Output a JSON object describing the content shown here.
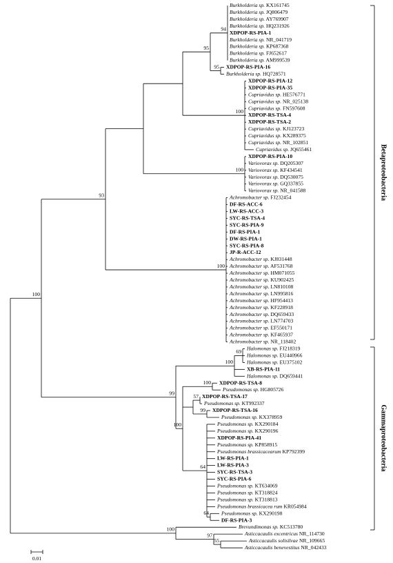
{
  "leaves": [
    {
      "genus": "Burkholderia sp.",
      "accession": "KX161745"
    },
    {
      "genus": "Burkholderia sp.",
      "accession": "JQ806479"
    },
    {
      "genus": "Burkholderia sp.",
      "accession": "AY769907"
    },
    {
      "genus": "Burkholderia sp.",
      "accession": "HQ231926"
    },
    {
      "isolate": "XDPOP-RS-PIA-1"
    },
    {
      "genus": "Burkholderia sp.",
      "accession": "NR_041719"
    },
    {
      "genus": "Burkholderia sp.",
      "accession": "KP687368"
    },
    {
      "genus": "Burkholderia sp.",
      "accession": "FJ652617"
    },
    {
      "genus": "Burkholderia sp.",
      "accession": "AM999539"
    },
    {
      "isolate": "XDPOP-RS-PIA-16"
    },
    {
      "genus": "Burkholderia sp.",
      "accession": "HQ728571"
    },
    {
      "isolate": "XDPOP-RS-PIA-12"
    },
    {
      "isolate": "XDPOP-RS-PIA-35"
    },
    {
      "genus": "Cupriavidus sp.",
      "accession": "HE576771"
    },
    {
      "genus": "Cupriavidus sp.",
      "accession": "NR_025138"
    },
    {
      "genus": "Cupriavidus sp.",
      "accession": "FN597608"
    },
    {
      "isolate": "XDPOP-RS-TSA-4"
    },
    {
      "isolate": "XDPOP-RS-TSA-2"
    },
    {
      "genus": "Cupriavidus sp.",
      "accession": "KJ123723"
    },
    {
      "genus": "Cupriavidus sp.",
      "accession": "KX289375"
    },
    {
      "genus": "Cupriavidus sp.",
      "accession": "NR_102851"
    },
    {
      "genus": "Cupriavidus sp.",
      "accession": "JQ655461"
    },
    {
      "isolate": "XDPOP-RS-PIA-10"
    },
    {
      "genus": "Variovorax sp.",
      "accession": "DQ205307"
    },
    {
      "genus": "Variovorax sp.",
      "accession": "KF434541"
    },
    {
      "genus": "Variovorax sp.",
      "accession": "DQ530075"
    },
    {
      "genus": "Variovorax sp.",
      "accession": "GQ337855"
    },
    {
      "genus": "Variovorax sp.",
      "accession": "NR_041588"
    },
    {
      "genus": "Achromobacter sp.",
      "accession": "FJ232454"
    },
    {
      "isolate": "DF-RS-ACC-6"
    },
    {
      "isolate": "LW-RS-ACC-3"
    },
    {
      "isolate": "SYC-RS-TSA-4"
    },
    {
      "isolate": "SYC-RS-PIA-9"
    },
    {
      "isolate": "DF-RS-PIA-1"
    },
    {
      "isolate": "DW-RS-PIA-1"
    },
    {
      "isolate": "SYC-RS-PIA-8"
    },
    {
      "isolate": "JP-R-ACC-12"
    },
    {
      "genus": "Achromobacter sp.",
      "accession": "KJ831448"
    },
    {
      "genus": "Achromobacter sp.",
      "accession": "AF531768"
    },
    {
      "genus": "Achromobacter sp.",
      "accession": "HM071055"
    },
    {
      "genus": "Achromobacter sp.",
      "accession": "KU902425"
    },
    {
      "genus": "Achromobacter sp.",
      "accession": "LN810108"
    },
    {
      "genus": "Achromobacter sp.",
      "accession": "LN995816"
    },
    {
      "genus": "Achromobacter sp.",
      "accession": "HF954413"
    },
    {
      "genus": "Achromobacter sp.",
      "accession": "KF228918"
    },
    {
      "genus": "Achromobacter sp.",
      "accession": "DQ659433"
    },
    {
      "genus": "Achromobacter sp.",
      "accession": "LN774703"
    },
    {
      "genus": "Achromobacter sp.",
      "accession": "EF550171"
    },
    {
      "genus": "Achromobacter sp.",
      "accession": "KF465937"
    },
    {
      "genus": "Achromobacter sp.",
      "accession": "NR_118402"
    },
    {
      "genus": "Halomonas sp.",
      "accession": "FJ218319"
    },
    {
      "genus": "Halomonas sp.",
      "accession": "EU440966"
    },
    {
      "genus": "Halomonas sp.",
      "accession": "EU375102"
    },
    {
      "isolate": "XB-RS-PIA-11"
    },
    {
      "genus": "Halomonas sp.",
      "accession": "DQ659441"
    },
    {
      "isolate": "XDPOP-RS-TSA-8"
    },
    {
      "genus": "Pseudomonas sp.",
      "accession": "HG805726"
    },
    {
      "isolate": "XDPOP-RS-TSA-17"
    },
    {
      "genus": "Pseudomonas sp.",
      "accession": "KT992337"
    },
    {
      "isolate": "XDPOP-RS-TSA-16"
    },
    {
      "genus": "Pseudomonas sp.",
      "accession": "KX378959"
    },
    {
      "genus": "Pseudomonas sp.",
      "accession": "KX290184"
    },
    {
      "genus": "Pseudomonas sp.",
      "accession": "KX290196"
    },
    {
      "isolate": "XDPOP-RS-PIA-41"
    },
    {
      "genus": "Pseudomonas sp.",
      "accession": "KP858915"
    },
    {
      "genus": "Pseudomonas brassicacearum",
      "accession": "KP792399"
    },
    {
      "isolate": "LW-RS-PIA-1"
    },
    {
      "isolate": "LW-RS-PIA-3"
    },
    {
      "isolate": "SYC-RS-TSA-3"
    },
    {
      "isolate": "SYC-RS-PIA-6"
    },
    {
      "genus": "Pseudomonas sp.",
      "accession": "KT634069"
    },
    {
      "genus": "Pseudomonas sp.",
      "accession": "KT318824"
    },
    {
      "genus": "Pseudomonas sp.",
      "accession": "KT318813"
    },
    {
      "genus": "Pseudomonas brassicacea rum",
      "accession": "KR054984"
    },
    {
      "genus": "Pseudomonas sp.",
      "accession": "KX290198"
    },
    {
      "isolate": "DF-RS-PIA-3"
    },
    {
      "genus": "Brevundimonas sp.",
      "accession": "KC513780"
    },
    {
      "genus": "Asticcacaulis excentricus",
      "accession": "NR_114730"
    },
    {
      "genus": "Asticcacaulis solisilvae",
      "accession": "NR_109665"
    },
    {
      "genus": "Asticcacaulis benevestitus",
      "accession": "NR_042433"
    }
  ],
  "bootstrap": [
    94,
    95,
    95,
    100,
    93,
    100,
    100,
    100,
    69,
    100,
    99,
    100,
    57,
    99,
    100,
    64,
    64,
    100,
    97,
    55
  ],
  "clades": [
    "Betaproteobacteria",
    "Gammaproteobacteria"
  ],
  "scale_bar": 0.01
}
